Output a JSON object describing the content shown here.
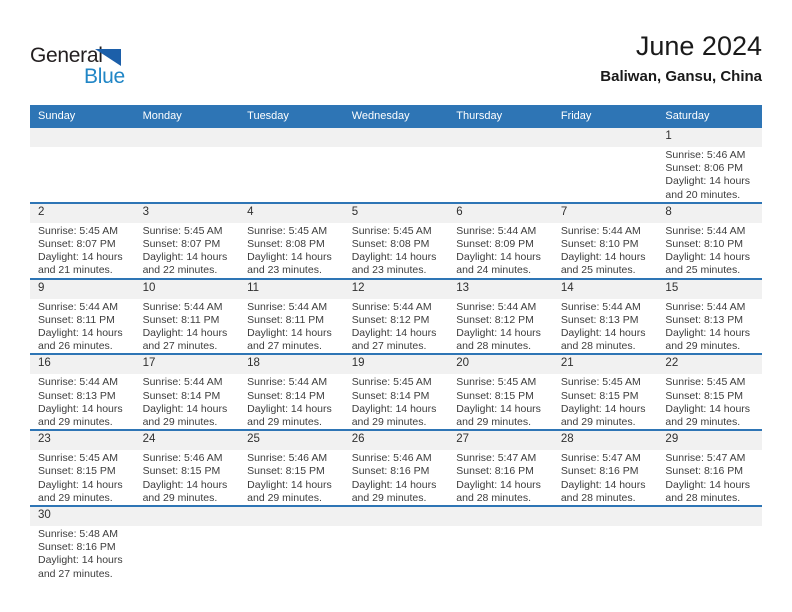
{
  "logo": {
    "part1": "General",
    "part2": "Blue"
  },
  "header": {
    "title": "June 2024",
    "subtitle": "Baliwan, Gansu, China"
  },
  "colors": {
    "accent_blue": "#2e75b5",
    "logo_text_blue": "#2186c6",
    "logo_triangle_blue": "#1c5fa9",
    "band_gray": "#f1f1f1",
    "header_text": "#ffffff",
    "body_text": "#3d3d3d"
  },
  "weekday_headers": [
    "Sunday",
    "Monday",
    "Tuesday",
    "Wednesday",
    "Thursday",
    "Friday",
    "Saturday"
  ],
  "weeks": [
    [
      null,
      null,
      null,
      null,
      null,
      null,
      {
        "day": "1",
        "lines": [
          "Sunrise: 5:46 AM",
          "Sunset: 8:06 PM",
          "Daylight: 14 hours",
          "and 20 minutes."
        ]
      }
    ],
    [
      {
        "day": "2",
        "lines": [
          "Sunrise: 5:45 AM",
          "Sunset: 8:07 PM",
          "Daylight: 14 hours",
          "and 21 minutes."
        ]
      },
      {
        "day": "3",
        "lines": [
          "Sunrise: 5:45 AM",
          "Sunset: 8:07 PM",
          "Daylight: 14 hours",
          "and 22 minutes."
        ]
      },
      {
        "day": "4",
        "lines": [
          "Sunrise: 5:45 AM",
          "Sunset: 8:08 PM",
          "Daylight: 14 hours",
          "and 23 minutes."
        ]
      },
      {
        "day": "5",
        "lines": [
          "Sunrise: 5:45 AM",
          "Sunset: 8:08 PM",
          "Daylight: 14 hours",
          "and 23 minutes."
        ]
      },
      {
        "day": "6",
        "lines": [
          "Sunrise: 5:44 AM",
          "Sunset: 8:09 PM",
          "Daylight: 14 hours",
          "and 24 minutes."
        ]
      },
      {
        "day": "7",
        "lines": [
          "Sunrise: 5:44 AM",
          "Sunset: 8:10 PM",
          "Daylight: 14 hours",
          "and 25 minutes."
        ]
      },
      {
        "day": "8",
        "lines": [
          "Sunrise: 5:44 AM",
          "Sunset: 8:10 PM",
          "Daylight: 14 hours",
          "and 25 minutes."
        ]
      }
    ],
    [
      {
        "day": "9",
        "lines": [
          "Sunrise: 5:44 AM",
          "Sunset: 8:11 PM",
          "Daylight: 14 hours",
          "and 26 minutes."
        ]
      },
      {
        "day": "10",
        "lines": [
          "Sunrise: 5:44 AM",
          "Sunset: 8:11 PM",
          "Daylight: 14 hours",
          "and 27 minutes."
        ]
      },
      {
        "day": "11",
        "lines": [
          "Sunrise: 5:44 AM",
          "Sunset: 8:11 PM",
          "Daylight: 14 hours",
          "and 27 minutes."
        ]
      },
      {
        "day": "12",
        "lines": [
          "Sunrise: 5:44 AM",
          "Sunset: 8:12 PM",
          "Daylight: 14 hours",
          "and 27 minutes."
        ]
      },
      {
        "day": "13",
        "lines": [
          "Sunrise: 5:44 AM",
          "Sunset: 8:12 PM",
          "Daylight: 14 hours",
          "and 28 minutes."
        ]
      },
      {
        "day": "14",
        "lines": [
          "Sunrise: 5:44 AM",
          "Sunset: 8:13 PM",
          "Daylight: 14 hours",
          "and 28 minutes."
        ]
      },
      {
        "day": "15",
        "lines": [
          "Sunrise: 5:44 AM",
          "Sunset: 8:13 PM",
          "Daylight: 14 hours",
          "and 29 minutes."
        ]
      }
    ],
    [
      {
        "day": "16",
        "lines": [
          "Sunrise: 5:44 AM",
          "Sunset: 8:13 PM",
          "Daylight: 14 hours",
          "and 29 minutes."
        ]
      },
      {
        "day": "17",
        "lines": [
          "Sunrise: 5:44 AM",
          "Sunset: 8:14 PM",
          "Daylight: 14 hours",
          "and 29 minutes."
        ]
      },
      {
        "day": "18",
        "lines": [
          "Sunrise: 5:44 AM",
          "Sunset: 8:14 PM",
          "Daylight: 14 hours",
          "and 29 minutes."
        ]
      },
      {
        "day": "19",
        "lines": [
          "Sunrise: 5:45 AM",
          "Sunset: 8:14 PM",
          "Daylight: 14 hours",
          "and 29 minutes."
        ]
      },
      {
        "day": "20",
        "lines": [
          "Sunrise: 5:45 AM",
          "Sunset: 8:15 PM",
          "Daylight: 14 hours",
          "and 29 minutes."
        ]
      },
      {
        "day": "21",
        "lines": [
          "Sunrise: 5:45 AM",
          "Sunset: 8:15 PM",
          "Daylight: 14 hours",
          "and 29 minutes."
        ]
      },
      {
        "day": "22",
        "lines": [
          "Sunrise: 5:45 AM",
          "Sunset: 8:15 PM",
          "Daylight: 14 hours",
          "and 29 minutes."
        ]
      }
    ],
    [
      {
        "day": "23",
        "lines": [
          "Sunrise: 5:45 AM",
          "Sunset: 8:15 PM",
          "Daylight: 14 hours",
          "and 29 minutes."
        ]
      },
      {
        "day": "24",
        "lines": [
          "Sunrise: 5:46 AM",
          "Sunset: 8:15 PM",
          "Daylight: 14 hours",
          "and 29 minutes."
        ]
      },
      {
        "day": "25",
        "lines": [
          "Sunrise: 5:46 AM",
          "Sunset: 8:15 PM",
          "Daylight: 14 hours",
          "and 29 minutes."
        ]
      },
      {
        "day": "26",
        "lines": [
          "Sunrise: 5:46 AM",
          "Sunset: 8:16 PM",
          "Daylight: 14 hours",
          "and 29 minutes."
        ]
      },
      {
        "day": "27",
        "lines": [
          "Sunrise: 5:47 AM",
          "Sunset: 8:16 PM",
          "Daylight: 14 hours",
          "and 28 minutes."
        ]
      },
      {
        "day": "28",
        "lines": [
          "Sunrise: 5:47 AM",
          "Sunset: 8:16 PM",
          "Daylight: 14 hours",
          "and 28 minutes."
        ]
      },
      {
        "day": "29",
        "lines": [
          "Sunrise: 5:47 AM",
          "Sunset: 8:16 PM",
          "Daylight: 14 hours",
          "and 28 minutes."
        ]
      }
    ],
    [
      {
        "day": "30",
        "lines": [
          "Sunrise: 5:48 AM",
          "Sunset: 8:16 PM",
          "Daylight: 14 hours",
          "and 27 minutes."
        ]
      },
      null,
      null,
      null,
      null,
      null,
      null
    ]
  ]
}
